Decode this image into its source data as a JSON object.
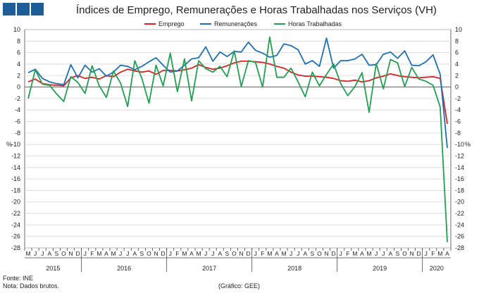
{
  "header": {
    "title": "Índices de Emprego, Remunerações e Horas Trabalhadas nos Serviços (VH)"
  },
  "footer": {
    "source": "Fonte: INE",
    "note": "Nota: Dados brutos.",
    "credit": "(Gráfico: GEE)"
  },
  "chart_data": {
    "type": "line",
    "title": "Índices de Emprego, Remunerações e Horas Trabalhadas nos Serviços (VH)",
    "ylabel_left": "%",
    "ylabel_right": "%",
    "ylim": [
      -28,
      10
    ],
    "yticks": [
      10,
      8,
      6,
      4,
      2,
      0,
      -2,
      -4,
      -6,
      -8,
      -10,
      -12,
      -14,
      -16,
      -18,
      -20,
      -22,
      -24,
      -26,
      -28
    ],
    "grid": true,
    "legend_position": "top",
    "month_labels": [
      "M",
      "J",
      "J",
      "A",
      "S",
      "O",
      "N",
      "D",
      "J",
      "F",
      "M",
      "A",
      "M",
      "J",
      "J",
      "A",
      "S",
      "O",
      "N",
      "D",
      "J",
      "F",
      "M",
      "A",
      "M",
      "J",
      "J",
      "A",
      "S",
      "O",
      "N",
      "D",
      "J",
      "F",
      "M",
      "A",
      "M",
      "J",
      "J",
      "A",
      "S",
      "O",
      "N",
      "D",
      "J",
      "F",
      "M",
      "A",
      "M",
      "J",
      "J",
      "A",
      "S",
      "O",
      "N",
      "D",
      "J",
      "F",
      "M",
      "A"
    ],
    "years": [
      {
        "label": "2015",
        "start": 0,
        "end": 7
      },
      {
        "label": "2016",
        "start": 8,
        "end": 19
      },
      {
        "label": "2017",
        "start": 20,
        "end": 31
      },
      {
        "label": "2018",
        "start": 32,
        "end": 43
      },
      {
        "label": "2019",
        "start": 44,
        "end": 55
      },
      {
        "label": "2020",
        "start": 56,
        "end": 59
      }
    ],
    "series": [
      {
        "name": "Emprego",
        "color": "#e02020",
        "values": [
          0.9,
          1.4,
          0.6,
          0.4,
          0.3,
          0.2,
          1.6,
          2.0,
          1.5,
          1.7,
          1.4,
          2.0,
          1.8,
          2.6,
          3.1,
          2.8,
          2.6,
          2.8,
          2.2,
          2.9,
          2.9,
          2.8,
          3.0,
          3.3,
          3.9,
          3.4,
          3.1,
          3.3,
          3.7,
          4.2,
          4.5,
          4.5,
          4.4,
          4.3,
          4.0,
          3.6,
          3.3,
          2.6,
          2.1,
          1.9,
          1.9,
          1.8,
          1.7,
          1.5,
          1.1,
          1.0,
          1.2,
          0.9,
          1.1,
          1.6,
          1.9,
          2.3,
          2.0,
          1.8,
          1.7,
          1.6,
          1.7,
          1.8,
          1.5,
          -6.4
        ]
      },
      {
        "name": "Remunerações",
        "color": "#1f6fb5",
        "values": [
          2.5,
          3.1,
          1.5,
          0.9,
          0.6,
          0.4,
          3.9,
          1.6,
          3.8,
          2.6,
          3.2,
          1.9,
          2.6,
          3.8,
          3.6,
          3.0,
          3.6,
          4.4,
          5.1,
          3.8,
          2.6,
          2.8,
          3.8,
          4.9,
          5.1,
          7.0,
          4.5,
          6.1,
          5.3,
          6.2,
          6.1,
          7.8,
          6.4,
          5.9,
          5.2,
          5.5,
          7.5,
          7.2,
          6.5,
          4.0,
          4.6,
          3.6,
          8.5,
          3.3,
          4.6,
          4.6,
          4.9,
          5.7,
          3.8,
          3.9,
          5.7,
          6.1,
          5.0,
          6.3,
          3.8,
          3.7,
          4.4,
          5.6,
          2.2,
          -10.6
        ]
      },
      {
        "name": "Horas Trabalhadas",
        "color": "#20a050",
        "values": [
          -2.0,
          3.0,
          0.5,
          0.3,
          -1.2,
          -2.5,
          1.8,
          0.8,
          -1.1,
          3.7,
          0.2,
          -1.8,
          2.8,
          0.7,
          -3.4,
          4.6,
          1.5,
          -2.8,
          3.8,
          0.2,
          5.9,
          -0.8,
          4.9,
          -2.4,
          4.6,
          3.2,
          2.6,
          3.6,
          1.8,
          6.3,
          0.1,
          4.6,
          4.3,
          0.0,
          8.7,
          1.7,
          1.7,
          3.3,
          0.9,
          -1.7,
          2.6,
          0.2,
          2.2,
          4.0,
          0.6,
          -1.5,
          0.1,
          2.5,
          -4.4,
          4.1,
          -0.3,
          4.8,
          4.2,
          0.1,
          3.4,
          1.4,
          1.0,
          0.3,
          -3.5,
          -27.0
        ]
      }
    ]
  }
}
